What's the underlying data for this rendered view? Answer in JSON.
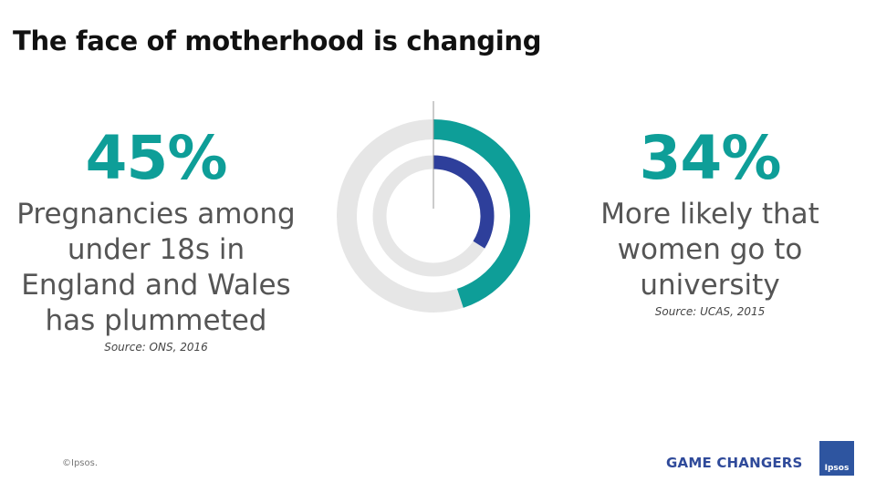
{
  "title": "The face of motherhood is changing",
  "left_stat": {
    "value": "45%",
    "lines": [
      "Pregnancies among",
      "under 18s in",
      "England and Wales",
      "has plummeted"
    ],
    "source": "Source: ONS, 2016"
  },
  "right_stat": {
    "value": "34%",
    "lines": [
      "More likely that",
      "women go to",
      "university"
    ],
    "source": "Source: UCAS, 2015"
  },
  "footer": {
    "copyright": "©Ipsos.",
    "brand": "GAME CHANGERS",
    "logo_text": "Ipsos"
  },
  "chart_data": {
    "type": "donut",
    "series": [
      {
        "values": [
          45
        ],
        "color": "#0e9e98"
      },
      {
        "values": [
          34
        ],
        "color": "#2e3f9b"
      }
    ],
    "track_color": "#e6e6e6",
    "unit": "%"
  }
}
